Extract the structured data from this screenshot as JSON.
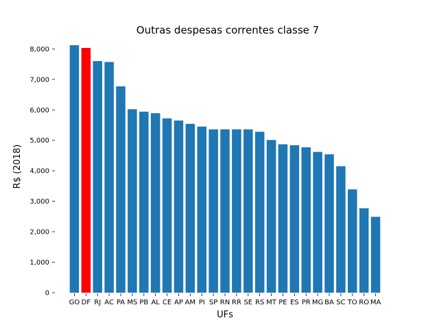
{
  "chart_data": {
    "type": "bar",
    "title": "Outras despesas correntes classe 7",
    "xlabel": "UFs",
    "ylabel": "R$ (2018)",
    "ylim": [
      0,
      8300
    ],
    "yticks": [
      0,
      1000,
      2000,
      3000,
      4000,
      5000,
      6000,
      7000,
      8000
    ],
    "ytick_labels": [
      "0",
      "1,000",
      "2,000",
      "3,000",
      "4,000",
      "5,000",
      "6,000",
      "7,000",
      "8,000"
    ],
    "grid": false,
    "categories": [
      "GO",
      "DF",
      "RJ",
      "AC",
      "PA",
      "MS",
      "PB",
      "AL",
      "CE",
      "AP",
      "AM",
      "PI",
      "SP",
      "RN",
      "RR",
      "SE",
      "RS",
      "MT",
      "PE",
      "ES",
      "PR",
      "MG",
      "BA",
      "SC",
      "TO",
      "RO",
      "MA"
    ],
    "values": [
      8120,
      8030,
      7600,
      7570,
      6770,
      6020,
      5940,
      5890,
      5720,
      5650,
      5540,
      5450,
      5360,
      5360,
      5360,
      5360,
      5280,
      5010,
      4870,
      4840,
      4770,
      4620,
      4540,
      4150,
      3390,
      2770,
      2490
    ],
    "highlight": "DF",
    "colors": {
      "default": "#1f77b4",
      "highlight": "#ff0000"
    }
  }
}
